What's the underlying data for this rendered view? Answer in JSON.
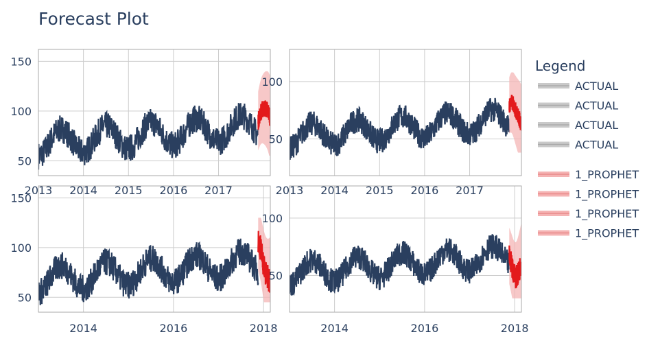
{
  "title": "Forecast Plot",
  "legend": {
    "title": "Legend",
    "items": [
      {
        "label": "ACTUAL",
        "kind": "actual"
      },
      {
        "label": "ACTUAL",
        "kind": "actual"
      },
      {
        "label": "ACTUAL",
        "kind": "actual"
      },
      {
        "label": "ACTUAL",
        "kind": "actual"
      },
      {
        "label": "1_PROPHET",
        "kind": "forecast"
      },
      {
        "label": "1_PROPHET",
        "kind": "forecast"
      },
      {
        "label": "1_PROPHET",
        "kind": "forecast"
      },
      {
        "label": "1_PROPHET",
        "kind": "forecast"
      }
    ]
  },
  "colors": {
    "actual": "#2a3f5f",
    "forecast": "#e31a1c",
    "band": "#f4b6b6",
    "grid": "#cccccc",
    "axis": "#555555",
    "legend_actual": "#bbbbbb",
    "legend_forecast": "#f2a0a0"
  },
  "chart_data": [
    {
      "type": "line",
      "panel": "top-left",
      "series": [
        {
          "name": "ACTUAL",
          "kind": "actual",
          "x_range": [
            2013.0,
            2017.88
          ],
          "base": 55,
          "amplitude": 25,
          "trend": 3.5,
          "noise": 14,
          "y_range_approx": [
            30,
            155
          ]
        },
        {
          "name": "1_PROPHET",
          "kind": "forecast",
          "x_range": [
            2017.88,
            2018.15
          ],
          "values_range": [
            75,
            105
          ],
          "interval_range": [
            55,
            140
          ]
        }
      ],
      "xlim": [
        2013,
        2018.15
      ],
      "ylim": [
        35,
        162
      ],
      "x_ticks": [
        {
          "v": 2013,
          "label": "2013"
        },
        {
          "v": 2014,
          "label": "2014"
        },
        {
          "v": 2015,
          "label": "2015"
        },
        {
          "v": 2016,
          "label": "2016"
        },
        {
          "v": 2017,
          "label": "2017"
        }
      ],
      "y_ticks": [
        {
          "v": 50,
          "label": "50"
        },
        {
          "v": 100,
          "label": "100"
        },
        {
          "v": 150,
          "label": "150"
        }
      ],
      "grid": true
    },
    {
      "type": "line",
      "panel": "top-right",
      "series": [
        {
          "name": "ACTUAL",
          "kind": "actual",
          "x_range": [
            2013.0,
            2017.88
          ],
          "base": 42,
          "amplitude": 20,
          "trend": 3.0,
          "noise": 11,
          "y_range_approx": [
            20,
            122
          ]
        },
        {
          "name": "1_PROPHET",
          "kind": "forecast",
          "x_range": [
            2017.88,
            2018.15
          ],
          "values_range": [
            58,
            82
          ],
          "interval_range": [
            38,
            108
          ]
        }
      ],
      "xlim": [
        2013,
        2018.15
      ],
      "ylim": [
        18,
        128
      ],
      "x_ticks": [
        {
          "v": 2013,
          "label": "2013"
        },
        {
          "v": 2014,
          "label": "2014"
        },
        {
          "v": 2015,
          "label": "2015"
        },
        {
          "v": 2016,
          "label": "2016"
        },
        {
          "v": 2017,
          "label": "2017"
        }
      ],
      "y_ticks": [
        {
          "v": 50,
          "label": "50"
        },
        {
          "v": 100,
          "label": "100"
        }
      ],
      "grid": true
    },
    {
      "type": "line",
      "panel": "bottom-left",
      "series": [
        {
          "name": "ACTUAL",
          "kind": "actual",
          "x_range": [
            2013.0,
            2017.88
          ],
          "base": 55,
          "amplitude": 25,
          "trend": 3.5,
          "noise": 14,
          "y_range_approx": [
            30,
            155
          ]
        },
        {
          "name": "1_PROPHET",
          "kind": "forecast",
          "x_range": [
            2017.88,
            2018.15
          ],
          "values_range": [
            65,
            110
          ],
          "interval_range": [
            45,
            130
          ]
        }
      ],
      "xlim": [
        2013,
        2018.15
      ],
      "ylim": [
        35,
        162
      ],
      "x_ticks": [
        {
          "v": 2014,
          "label": "2014"
        },
        {
          "v": 2016,
          "label": "2016"
        },
        {
          "v": 2018,
          "label": "2018"
        }
      ],
      "y_ticks": [
        {
          "v": 50,
          "label": "50"
        },
        {
          "v": 100,
          "label": "100"
        },
        {
          "v": 150,
          "label": "150"
        }
      ],
      "grid": true
    },
    {
      "type": "line",
      "panel": "bottom-right",
      "series": [
        {
          "name": "ACTUAL",
          "kind": "actual",
          "x_range": [
            2013.0,
            2017.88
          ],
          "base": 42,
          "amplitude": 20,
          "trend": 3.0,
          "noise": 11,
          "y_range_approx": [
            20,
            122
          ]
        },
        {
          "name": "1_PROPHET",
          "kind": "forecast",
          "x_range": [
            2017.88,
            2018.15
          ],
          "values_range": [
            48,
            82
          ],
          "interval_range": [
            30,
            100
          ]
        }
      ],
      "xlim": [
        2013,
        2018.15
      ],
      "ylim": [
        18,
        128
      ],
      "x_ticks": [
        {
          "v": 2014,
          "label": "2014"
        },
        {
          "v": 2016,
          "label": "2016"
        },
        {
          "v": 2018,
          "label": "2018"
        }
      ],
      "y_ticks": [
        {
          "v": 50,
          "label": "50"
        },
        {
          "v": 100,
          "label": "100"
        }
      ],
      "grid": true
    }
  ]
}
